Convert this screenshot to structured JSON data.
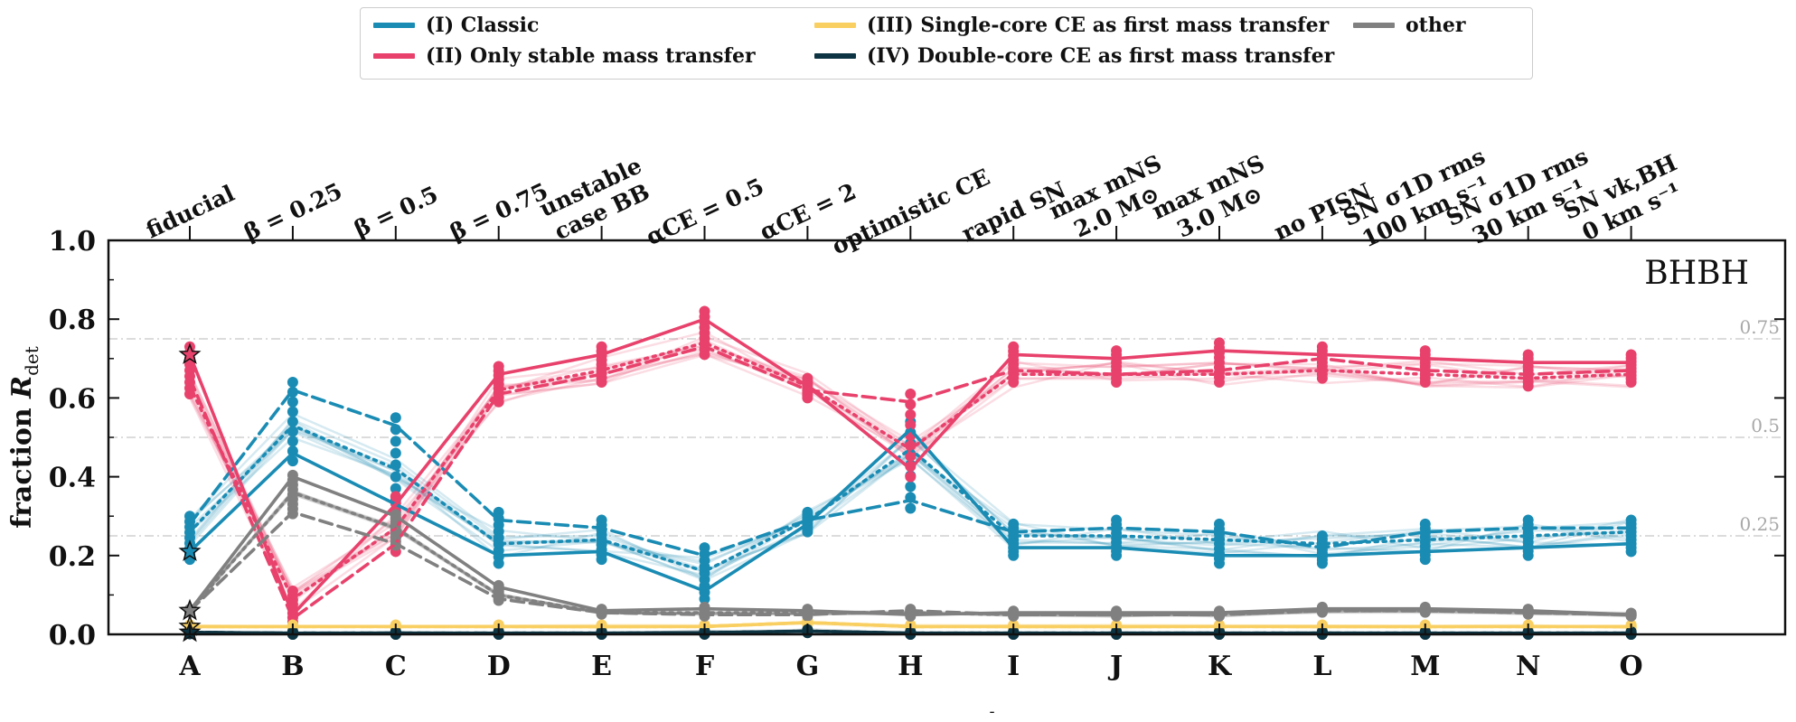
{
  "legend": {
    "items": [
      {
        "label": "(I) Classic",
        "color": "#1a8cb4"
      },
      {
        "label": "(II) Only stable mass transfer",
        "color": "#e8426c"
      },
      {
        "label": "(III) Single-core CE as first mass transfer",
        "color": "#f9cf62"
      },
      {
        "label": "(IV) Double-core CE as first mass transfer",
        "color": "#0d3442"
      },
      {
        "label": "other",
        "color": "#808080"
      }
    ]
  },
  "chart_data": {
    "type": "line",
    "ylabel": "fraction R_det",
    "ylabel_main": "fraction ",
    "ylabel_symbol": "R",
    "ylabel_sub": "det",
    "ylim": [
      0,
      1.0
    ],
    "yticks": [
      "0.0",
      "0.2",
      "0.4",
      "0.6",
      "0.8",
      "1.0"
    ],
    "categories": [
      "A",
      "B",
      "C",
      "D",
      "E",
      "F",
      "G",
      "H",
      "I",
      "J",
      "K",
      "L",
      "M",
      "N",
      "O"
    ],
    "top_labels": [
      [
        "fiducial"
      ],
      [
        "β = 0.25"
      ],
      [
        "β = 0.5"
      ],
      [
        "β = 0.75"
      ],
      [
        "unstable",
        "case BB"
      ],
      [
        "αCE = 0.5"
      ],
      [
        "αCE = 2"
      ],
      [
        "optimistic CE"
      ],
      [
        "rapid SN"
      ],
      [
        "max mNS",
        "2.0 M⊙"
      ],
      [
        "max mNS",
        "3.0 M⊙"
      ],
      [
        "no PISN"
      ],
      [
        "SN σ1D rms",
        "100 km s⁻¹"
      ],
      [
        "SN σ1D rms",
        "30 km s⁻¹"
      ],
      [
        "SN vk,BH",
        "0 km s⁻¹"
      ]
    ],
    "annotation": "BHBH",
    "reference_lines": [
      {
        "y": 0.75,
        "label": "0.75"
      },
      {
        "y": 0.5,
        "label": "0.5"
      },
      {
        "y": 0.25,
        "label": "0.25"
      }
    ],
    "series": [
      {
        "name": "(I) Classic",
        "color": "#1a8cb4",
        "solid": [
          0.21,
          0.46,
          0.33,
          0.2,
          0.21,
          0.11,
          0.28,
          0.52,
          0.22,
          0.22,
          0.2,
          0.2,
          0.21,
          0.22,
          0.23
        ],
        "dashed": [
          0.28,
          0.62,
          0.53,
          0.29,
          0.27,
          0.2,
          0.29,
          0.34,
          0.26,
          0.27,
          0.26,
          0.22,
          0.26,
          0.27,
          0.27
        ],
        "dotted": [
          0.26,
          0.53,
          0.42,
          0.23,
          0.24,
          0.16,
          0.29,
          0.47,
          0.25,
          0.25,
          0.24,
          0.23,
          0.24,
          0.25,
          0.26
        ]
      },
      {
        "name": "(II) Only stable mass transfer",
        "color": "#e8426c",
        "solid": [
          0.71,
          0.05,
          0.33,
          0.66,
          0.71,
          0.8,
          0.63,
          0.42,
          0.71,
          0.7,
          0.72,
          0.71,
          0.7,
          0.69,
          0.69
        ],
        "dashed": [
          0.65,
          0.04,
          0.23,
          0.61,
          0.66,
          0.73,
          0.62,
          0.59,
          0.67,
          0.66,
          0.67,
          0.7,
          0.67,
          0.66,
          0.67
        ],
        "dotted": [
          0.63,
          0.09,
          0.27,
          0.62,
          0.67,
          0.74,
          0.63,
          0.47,
          0.66,
          0.66,
          0.66,
          0.67,
          0.66,
          0.65,
          0.66
        ]
      },
      {
        "name": "(III) Single-core CE as first mass transfer",
        "color": "#f9cf62",
        "solid": [
          0.02,
          0.02,
          0.02,
          0.02,
          0.02,
          0.02,
          0.03,
          0.02,
          0.02,
          0.02,
          0.02,
          0.02,
          0.02,
          0.02,
          0.02
        ],
        "dashed": [
          0.02,
          0.02,
          0.02,
          0.02,
          0.02,
          0.02,
          0.03,
          0.02,
          0.02,
          0.02,
          0.02,
          0.02,
          0.02,
          0.02,
          0.02
        ],
        "dotted": [
          0.02,
          0.02,
          0.02,
          0.02,
          0.02,
          0.02,
          0.03,
          0.02,
          0.02,
          0.02,
          0.02,
          0.02,
          0.02,
          0.02,
          0.02
        ]
      },
      {
        "name": "(IV) Double-core CE as first mass transfer",
        "color": "#0d3442",
        "solid": [
          0.005,
          0.003,
          0.003,
          0.003,
          0.003,
          0.004,
          0.008,
          0.003,
          0.003,
          0.003,
          0.003,
          0.003,
          0.003,
          0.003,
          0.003
        ],
        "dashed": [
          0.005,
          0.003,
          0.003,
          0.003,
          0.003,
          0.004,
          0.008,
          0.003,
          0.003,
          0.003,
          0.003,
          0.003,
          0.003,
          0.003,
          0.003
        ],
        "dotted": [
          0.005,
          0.003,
          0.003,
          0.003,
          0.003,
          0.004,
          0.008,
          0.003,
          0.003,
          0.003,
          0.003,
          0.003,
          0.003,
          0.003,
          0.003
        ]
      },
      {
        "name": "other",
        "color": "#808080",
        "solid": [
          0.06,
          0.4,
          0.3,
          0.12,
          0.06,
          0.065,
          0.06,
          0.05,
          0.055,
          0.055,
          0.055,
          0.065,
          0.065,
          0.06,
          0.05
        ],
        "dashed": [
          0.06,
          0.31,
          0.23,
          0.09,
          0.055,
          0.05,
          0.05,
          0.06,
          0.05,
          0.05,
          0.05,
          0.06,
          0.06,
          0.055,
          0.05
        ],
        "dotted": [
          0.06,
          0.36,
          0.27,
          0.1,
          0.055,
          0.055,
          0.055,
          0.055,
          0.05,
          0.05,
          0.05,
          0.06,
          0.06,
          0.055,
          0.05
        ]
      }
    ],
    "fiducial_stars": [
      {
        "series": "(I) Classic",
        "value": 0.21
      },
      {
        "series": "(II) Only stable mass transfer",
        "value": 0.71
      },
      {
        "series": "(III) Single-core CE as first mass transfer",
        "value": 0.02
      },
      {
        "series": "(IV) Double-core CE as first mass transfer",
        "value": 0.005
      },
      {
        "series": "other",
        "value": 0.06
      }
    ],
    "bottom_label": "-"
  }
}
